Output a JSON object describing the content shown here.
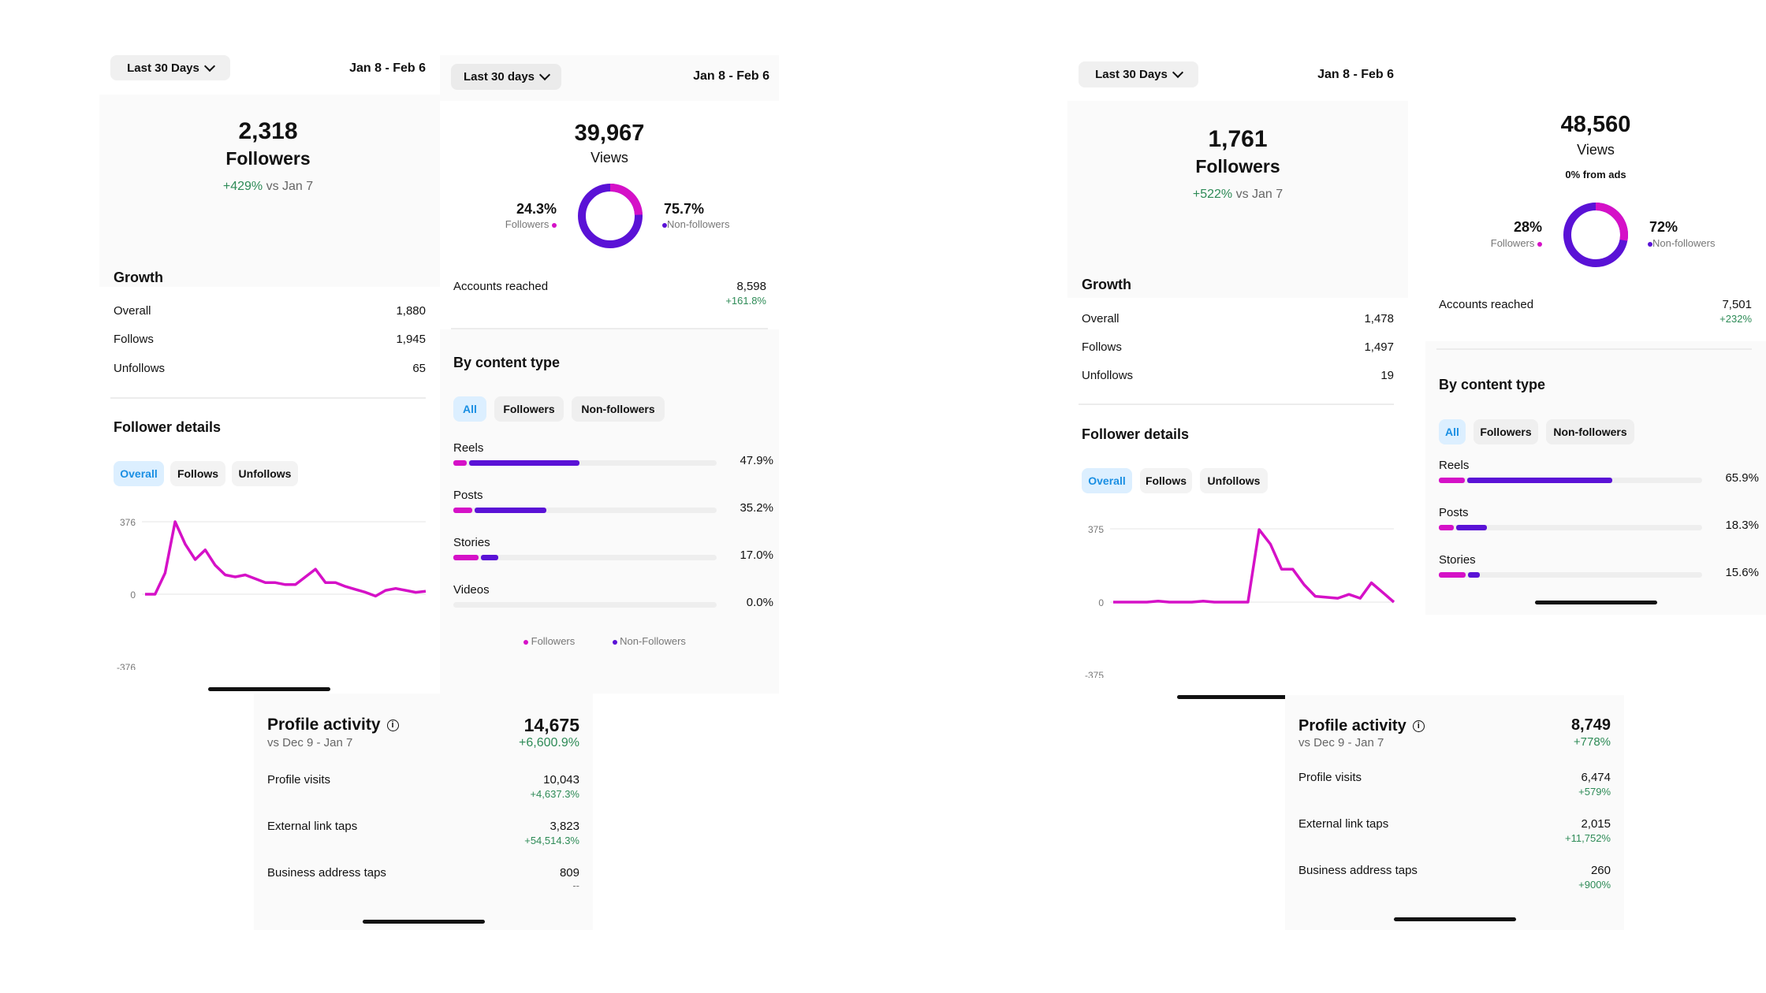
{
  "colors": {
    "followers": "#d511c7",
    "non_followers": "#5a12d6",
    "positive": "#2e8b57",
    "active_tab_bg": "#dcefff",
    "active_tab_text": "#1a8fe3"
  },
  "left": {
    "followers_screen": {
      "range": "Last 30 Days",
      "dates": "Jan 8 - Feb 6",
      "followers": "2,318",
      "followers_label": "Followers",
      "change": "+429%",
      "change_suffix": "vs Jan 7",
      "growth_title": "Growth",
      "growth": [
        {
          "label": "Overall",
          "value": "1,880"
        },
        {
          "label": "Follows",
          "value": "1,945"
        },
        {
          "label": "Unfollows",
          "value": "65"
        }
      ],
      "details_title": "Follower details",
      "tabs": [
        "Overall",
        "Follows",
        "Unfollows"
      ],
      "chart_ticks": [
        "376",
        "0",
        "-376"
      ],
      "chart_data": {
        "type": "line",
        "ylim": [
          -376,
          376
        ],
        "yticks": [
          376,
          0,
          -376
        ],
        "values": [
          0,
          0,
          110,
          376,
          260,
          180,
          230,
          150,
          100,
          90,
          100,
          80,
          60,
          60,
          50,
          50,
          90,
          130,
          60,
          60,
          40,
          25,
          10,
          -10,
          20,
          30,
          20,
          10,
          15
        ]
      }
    },
    "views_screen": {
      "range": "Last 30 days",
      "dates": "Jan 8 - Feb 6",
      "views": "39,967",
      "views_label": "Views",
      "followers_pct": "24.3%",
      "followers_word": "Followers",
      "non_followers_pct": "75.7%",
      "non_followers_word": "Non-followers",
      "donut": {
        "followers_fraction": 0.243
      },
      "reach_label": "Accounts reached",
      "reach_value": "8,598",
      "reach_change": "+161.8%",
      "content_title": "By content type",
      "filters": [
        "All",
        "Followers",
        "Non-followers"
      ],
      "content": [
        {
          "label": "Reels",
          "pct": "47.9%",
          "value": 47.9,
          "followers_share": 0.12
        },
        {
          "label": "Posts",
          "pct": "35.2%",
          "value": 35.2,
          "followers_share": 0.22
        },
        {
          "label": "Stories",
          "pct": "17.0%",
          "value": 17.0,
          "followers_share": 0.6
        },
        {
          "label": "Videos",
          "pct": "0.0%",
          "value": 0.0,
          "followers_share": 0
        }
      ],
      "legend_followers": "Followers",
      "legend_non_followers": "Non-Followers"
    },
    "activity_screen": {
      "title": "Profile activity",
      "compare": "vs Dec 9 - Jan 7",
      "total": "14,675",
      "total_change": "+6,600.9%",
      "rows": [
        {
          "label": "Profile visits",
          "value": "10,043",
          "change": "+4,637.3%"
        },
        {
          "label": "External link taps",
          "value": "3,823",
          "change": "+54,514.3%"
        },
        {
          "label": "Business address taps",
          "value": "809",
          "change": "--"
        }
      ]
    }
  },
  "right": {
    "followers_screen": {
      "range": "Last 30 Days",
      "dates": "Jan 8 - Feb 6",
      "followers": "1,761",
      "followers_label": "Followers",
      "change": "+522%",
      "change_suffix": "vs Jan 7",
      "growth_title": "Growth",
      "growth": [
        {
          "label": "Overall",
          "value": "1,478"
        },
        {
          "label": "Follows",
          "value": "1,497"
        },
        {
          "label": "Unfollows",
          "value": "19"
        }
      ],
      "details_title": "Follower details",
      "tabs": [
        "Overall",
        "Follows",
        "Unfollows"
      ],
      "chart_ticks": [
        "375",
        "0",
        "-375"
      ],
      "chart_data": {
        "type": "line",
        "ylim": [
          -375,
          375
        ],
        "yticks": [
          375,
          0,
          -375
        ],
        "values": [
          0,
          0,
          0,
          0,
          5,
          0,
          0,
          0,
          5,
          0,
          0,
          0,
          0,
          375,
          300,
          170,
          170,
          90,
          30,
          25,
          20,
          40,
          20,
          100,
          50,
          0
        ]
      }
    },
    "views_screen": {
      "views": "48,560",
      "views_label": "Views",
      "ads_note": "0% from ads",
      "followers_pct": "28%",
      "followers_word": "Followers",
      "non_followers_pct": "72%",
      "non_followers_word": "Non-followers",
      "donut": {
        "followers_fraction": 0.28
      },
      "reach_label": "Accounts reached",
      "reach_value": "7,501",
      "reach_change": "+232%",
      "content_title": "By content type",
      "filters": [
        "All",
        "Followers",
        "Non-followers"
      ],
      "content": [
        {
          "label": "Reels",
          "pct": "65.9%",
          "value": 65.9,
          "followers_share": 0.16
        },
        {
          "label": "Posts",
          "pct": "18.3%",
          "value": 18.3,
          "followers_share": 0.35
        },
        {
          "label": "Stories",
          "pct": "15.6%",
          "value": 15.6,
          "followers_share": 0.7
        }
      ]
    },
    "activity_screen": {
      "title": "Profile activity",
      "compare": "vs Dec 9 - Jan 7",
      "total": "8,749",
      "total_change": "+778%",
      "rows": [
        {
          "label": "Profile visits",
          "value": "6,474",
          "change": "+579%"
        },
        {
          "label": "External link taps",
          "value": "2,015",
          "change": "+11,752%"
        },
        {
          "label": "Business address taps",
          "value": "260",
          "change": "+900%"
        }
      ]
    }
  }
}
